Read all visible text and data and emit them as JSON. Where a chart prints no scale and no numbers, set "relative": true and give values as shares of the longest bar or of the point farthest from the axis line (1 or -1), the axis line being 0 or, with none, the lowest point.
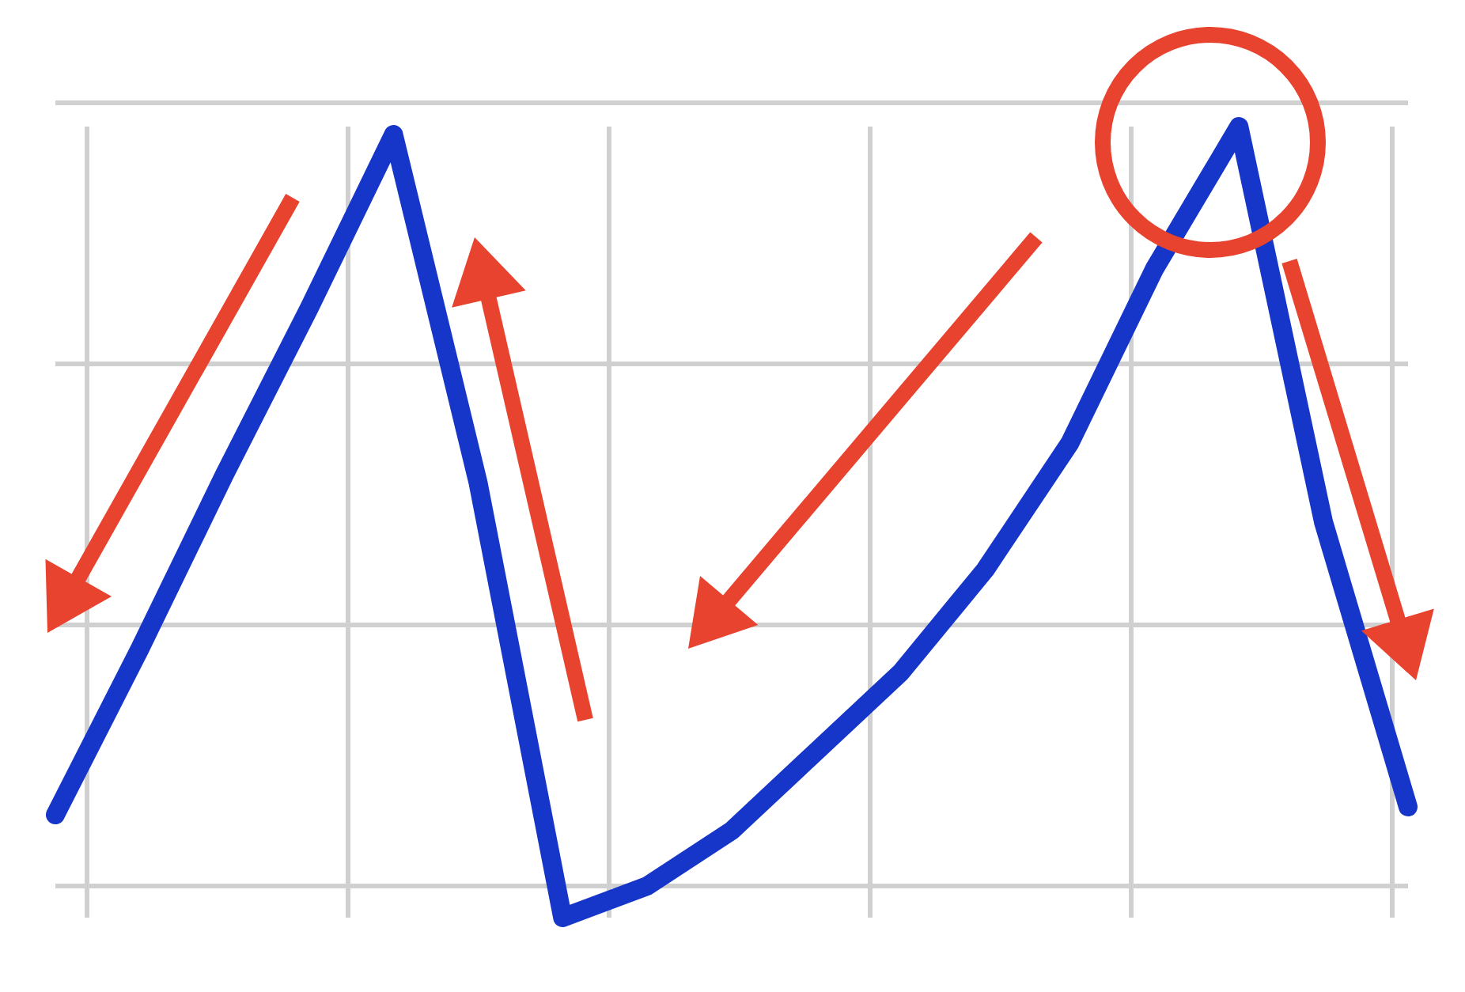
{
  "chart_data": {
    "type": "line",
    "relative": true,
    "grid": true,
    "marker": "none",
    "categories": [
      null,
      null,
      null,
      null,
      null,
      null,
      null,
      null,
      null,
      null,
      null,
      null,
      null,
      null,
      null,
      null,
      null
    ],
    "series": [
      {
        "color": "#1636c9",
        "values": [
          0.13,
          0.34,
          0.56,
          0.77,
          0.99,
          0.55,
          0,
          0.04,
          0.11,
          0.21,
          0.31,
          0.44,
          0.6,
          0.82,
          1,
          0.5,
          0.14
        ]
      }
    ]
  }
}
